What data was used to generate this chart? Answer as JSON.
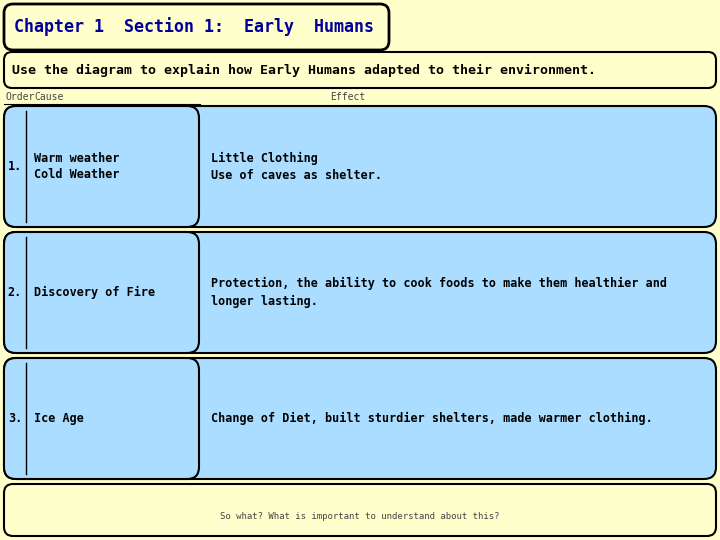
{
  "title": "Chapter 1  Section 1:  Early  Humans",
  "subtitle": "Use the diagram to explain how Early Humans adapted to their environment.",
  "col_header_order": "Order",
  "col_header_cause": "Cause",
  "col_header_effect": "Effect",
  "rows": [
    {
      "number": "1.",
      "cause": "Warm weather\nCold Weather",
      "effect": "Little Clothing\nUse of caves as shelter."
    },
    {
      "number": "2.",
      "cause": "Discovery of Fire",
      "effect": "Protection, the ability to cook foods to make them healthier and\nlonger lasting."
    },
    {
      "number": "3.",
      "cause": "Ice Age",
      "effect": "Change of Diet, built sturdier shelters, made warmer clothing."
    }
  ],
  "footer": "So what? What is important to understand about this?",
  "bg_outer": "#ffffcc",
  "bg_title_box": "#ffffcc",
  "bg_row": "#aaddff",
  "border_color": "#000000",
  "title_color": "#000099",
  "text_color": "#000000",
  "header_color": "#444444",
  "title_fontsize": 12,
  "subtitle_fontsize": 9.5,
  "body_fontsize": 8.5,
  "header_fontsize": 7
}
